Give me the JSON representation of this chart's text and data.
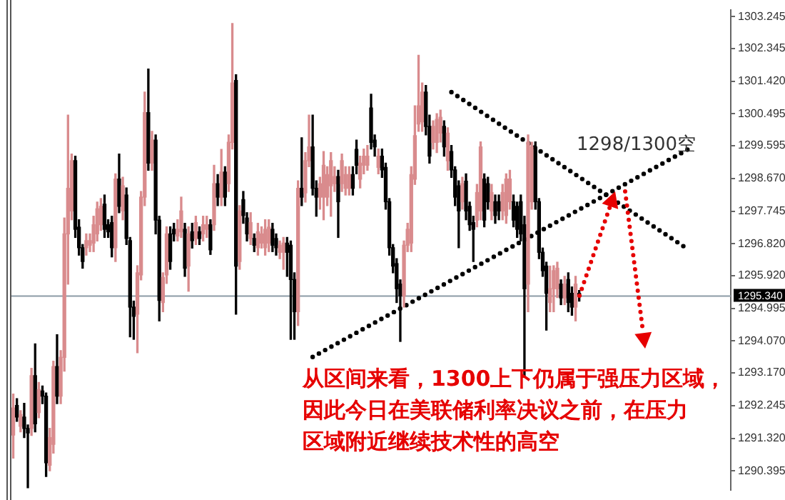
{
  "chart_data": {
    "type": "candlestick",
    "categories": [
      null,
      null,
      null,
      null,
      null,
      null,
      null,
      null,
      null,
      null,
      null,
      null,
      null,
      null,
      null,
      null,
      null,
      null,
      null,
      null,
      null,
      null,
      null,
      null,
      null,
      null,
      null,
      null,
      null,
      null,
      null,
      null,
      null,
      null,
      null,
      null,
      null,
      null,
      null,
      null,
      null,
      null,
      null,
      null,
      null,
      null,
      null,
      null,
      null,
      null,
      null,
      null,
      null,
      null,
      null,
      null,
      null,
      null,
      null,
      null,
      null,
      null,
      null,
      null,
      null,
      null,
      null,
      null,
      null,
      null,
      null,
      null,
      null,
      null,
      null,
      null,
      null,
      null,
      null,
      null,
      null,
      null,
      null,
      null,
      null,
      null,
      null,
      null,
      null,
      null,
      null,
      null,
      null,
      null,
      null,
      null,
      null,
      null,
      null,
      null,
      null,
      null,
      null,
      null,
      null,
      null,
      null,
      null,
      null,
      null,
      null,
      null,
      null,
      null,
      null,
      null,
      null,
      null,
      null,
      null,
      null,
      null,
      null,
      null,
      null,
      null,
      null,
      null,
      null,
      null,
      null,
      null,
      null,
      null,
      null,
      null,
      null,
      null,
      null,
      null,
      null,
      null,
      null,
      null,
      null,
      null,
      null,
      null,
      null,
      null,
      null,
      null,
      null,
      null,
      null,
      null,
      null,
      null,
      null,
      null,
      null,
      null,
      null,
      null,
      null,
      null,
      null,
      null,
      null,
      null,
      null,
      null,
      null,
      null,
      null,
      null,
      null,
      null,
      null,
      null,
      null,
      null,
      null,
      null,
      null,
      null,
      null,
      null,
      null,
      null,
      null,
      null,
      null,
      null,
      null,
      null,
      null
    ],
    "ohlc": [
      [
        1291.41,
        1292.57,
        1290.76,
        1292.18
      ],
      [
        1292.25,
        1292.44,
        1291.8,
        1291.92
      ],
      [
        1291.66,
        1292.1,
        1291.5,
        1291.99
      ],
      [
        1291.92,
        1292.31,
        1291.34,
        1291.6
      ],
      [
        1291.6,
        1291.7,
        1289.92,
        1291.47
      ],
      [
        1291.6,
        1293.3,
        1291.4,
        1293.09
      ],
      [
        1293.09,
        1293.99,
        1291.5,
        1291.73
      ],
      [
        1292.05,
        1292.9,
        1291.9,
        1292.7
      ],
      [
        1292.66,
        1292.8,
        1292.3,
        1292.51
      ],
      [
        1292.51,
        1292.6,
        1290.24,
        1290.63
      ],
      [
        1290.56,
        1291.6,
        1290.4,
        1291.34
      ],
      [
        1291.15,
        1293.5,
        1290.9,
        1293.35
      ],
      [
        1293.35,
        1294.25,
        1292.3,
        1292.51
      ],
      [
        1292.51,
        1293.8,
        1292.3,
        1293.61
      ],
      [
        1293.61,
        1297.55,
        1293.22,
        1297.1
      ],
      [
        1297.1,
        1300.46,
        1295.68,
        1298.39
      ],
      [
        1297.75,
        1299.36,
        1297.5,
        1299.17
      ],
      [
        1299.17,
        1299.3,
        1297.0,
        1297.23
      ],
      [
        1297.29,
        1297.5,
        1296.5,
        1296.71
      ],
      [
        1296.71,
        1296.8,
        1296.13,
        1296.32
      ],
      [
        1296.71,
        1297.1,
        1296.5,
        1296.91
      ],
      [
        1296.78,
        1297.1,
        1296.6,
        1296.91
      ],
      [
        1296.84,
        1297.6,
        1296.6,
        1297.36
      ],
      [
        1297.1,
        1298.0,
        1296.9,
        1297.81
      ],
      [
        1297.36,
        1298.1,
        1297.2,
        1297.88
      ],
      [
        1297.94,
        1298.2,
        1297.0,
        1297.23
      ],
      [
        1297.36,
        1297.5,
        1297.0,
        1297.16
      ],
      [
        1297.42,
        1297.6,
        1296.45,
        1296.71
      ],
      [
        1296.71,
        1298.8,
        1296.32,
        1298.65
      ],
      [
        1298.65,
        1299.36,
        1297.7,
        1297.88
      ],
      [
        1297.75,
        1298.7,
        1297.5,
        1298.46
      ],
      [
        1298.2,
        1298.4,
        1296.8,
        1296.97
      ],
      [
        1296.91,
        1297.0,
        1294.19,
        1295.03
      ],
      [
        1295.03,
        1295.2,
        1294.12,
        1294.77
      ],
      [
        1294.83,
        1296.2,
        1293.74,
        1296.0
      ],
      [
        1295.94,
        1298.3,
        1295.8,
        1298.14
      ],
      [
        1298.14,
        1301.11,
        1297.9,
        1300.53
      ],
      [
        1300.53,
        1301.76,
        1298.9,
        1299.1
      ],
      [
        1299.1,
        1300.0,
        1298.9,
        1299.75
      ],
      [
        1299.75,
        1299.9,
        1297.1,
        1297.49
      ],
      [
        1297.49,
        1297.6,
        1294.64,
        1295.22
      ],
      [
        1295.16,
        1296.0,
        1294.9,
        1295.87
      ],
      [
        1295.94,
        1297.3,
        1295.7,
        1297.1
      ],
      [
        1297.1,
        1297.3,
        1296.1,
        1296.32
      ],
      [
        1297.23,
        1297.4,
        1296.9,
        1297.1
      ],
      [
        1297.04,
        1297.5,
        1296.9,
        1297.23
      ],
      [
        1297.16,
        1298.14,
        1297.0,
        1297.75
      ],
      [
        1297.23,
        1297.4,
        1295.9,
        1296.13
      ],
      [
        1296.19,
        1297.3,
        1295.48,
        1297.1
      ],
      [
        1297.16,
        1297.4,
        1296.7,
        1296.91
      ],
      [
        1296.97,
        1297.6,
        1296.8,
        1297.42
      ],
      [
        1297.16,
        1297.3,
        1296.8,
        1296.97
      ],
      [
        1297.1,
        1297.6,
        1296.9,
        1297.36
      ],
      [
        1297.23,
        1297.6,
        1297.0,
        1297.36
      ],
      [
        1297.36,
        1297.5,
        1296.52,
        1296.65
      ],
      [
        1297.36,
        1299.04,
        1297.2,
        1298.52
      ],
      [
        1298.52,
        1298.78,
        1297.9,
        1298.14
      ],
      [
        1298.14,
        1299.49,
        1297.9,
        1298.85
      ],
      [
        1298.85,
        1299.0,
        1297.9,
        1298.14
      ],
      [
        1298.52,
        1299.9,
        1298.3,
        1299.69
      ],
      [
        1299.69,
        1303.05,
        1299.5,
        1301.37
      ],
      [
        1301.44,
        1301.6,
        1294.83,
        1296.19
      ],
      [
        1296.32,
        1297.9,
        1296.1,
        1297.75
      ],
      [
        1298.07,
        1298.3,
        1297.4,
        1297.62
      ],
      [
        1297.55,
        1297.7,
        1296.9,
        1297.1
      ],
      [
        1296.97,
        1297.7,
        1296.8,
        1297.42
      ],
      [
        1296.97,
        1297.1,
        1296.6,
        1296.78
      ],
      [
        1296.71,
        1297.4,
        1296.5,
        1297.16
      ],
      [
        1296.84,
        1297.3,
        1296.7,
        1297.1
      ],
      [
        1296.71,
        1297.5,
        1296.5,
        1297.23
      ],
      [
        1296.84,
        1297.5,
        1296.6,
        1297.29
      ],
      [
        1297.23,
        1297.4,
        1296.6,
        1296.78
      ],
      [
        1296.97,
        1297.1,
        1296.5,
        1296.71
      ],
      [
        1296.58,
        1296.9,
        1296.4,
        1296.78
      ],
      [
        1296.58,
        1297.0,
        1296.1,
        1296.84
      ],
      [
        1296.84,
        1297.0,
        1295.9,
        1296.58
      ],
      [
        1296.78,
        1296.9,
        1294.12,
        1295.81
      ],
      [
        1295.81,
        1296.0,
        1294.12,
        1294.9
      ],
      [
        1294.9,
        1298.6,
        1294.51,
        1298.39
      ],
      [
        1298.39,
        1299.82,
        1297.9,
        1298.14
      ],
      [
        1298.26,
        1299.4,
        1298.0,
        1299.17
      ],
      [
        1299.17,
        1300.46,
        1299.0,
        1299.56
      ],
      [
        1299.56,
        1300.46,
        1298.2,
        1298.39
      ],
      [
        1298.39,
        1298.6,
        1297.6,
        1298.14
      ],
      [
        1298.14,
        1298.7,
        1297.8,
        1298.52
      ],
      [
        1298.14,
        1299.43,
        1297.5,
        1299.04
      ],
      [
        1298.14,
        1299.0,
        1297.9,
        1298.78
      ],
      [
        1298.46,
        1299.4,
        1297.6,
        1299.17
      ],
      [
        1298.52,
        1299.0,
        1298.3,
        1298.72
      ],
      [
        1298.72,
        1298.9,
        1297.0,
        1298.01
      ],
      [
        1298.52,
        1299.36,
        1298.3,
        1299.17
      ],
      [
        1298.39,
        1299.0,
        1298.2,
        1298.78
      ],
      [
        1298.39,
        1299.0,
        1298.2,
        1298.78
      ],
      [
        1298.78,
        1299.0,
        1298.2,
        1298.39
      ],
      [
        1299.49,
        1299.75,
        1298.8,
        1299.04
      ],
      [
        1298.65,
        1299.3,
        1298.4,
        1299.1
      ],
      [
        1299.04,
        1299.5,
        1298.8,
        1299.3
      ],
      [
        1299.04,
        1299.6,
        1298.9,
        1299.3
      ],
      [
        1300.66,
        1301.05,
        1299.5,
        1299.69
      ],
      [
        1299.75,
        1299.9,
        1299.3,
        1299.56
      ],
      [
        1298.98,
        1299.5,
        1298.8,
        1299.3
      ],
      [
        1299.3,
        1299.5,
        1298.7,
        1298.91
      ],
      [
        1298.98,
        1299.1,
        1297.8,
        1298.01
      ],
      [
        1298.01,
        1298.1,
        1296.5,
        1296.71
      ],
      [
        1296.71,
        1296.8,
        1296.0,
        1296.19
      ],
      [
        1296.26,
        1296.4,
        1295.16,
        1295.55
      ],
      [
        1295.68,
        1295.8,
        1294.06,
        1295.35
      ],
      [
        1295.35,
        1296.9,
        1295.03,
        1296.78
      ],
      [
        1296.78,
        1297.4,
        1296.6,
        1297.23
      ],
      [
        1296.84,
        1299.0,
        1296.6,
        1298.78
      ],
      [
        1298.65,
        1300.72,
        1298.5,
        1299.88
      ],
      [
        1300.21,
        1302.15,
        1300.0,
        1300.72
      ],
      [
        1300.27,
        1301.37,
        1300.0,
        1301.11
      ],
      [
        1301.11,
        1301.3,
        1299.9,
        1300.14
      ],
      [
        1300.14,
        1300.46,
        1299.1,
        1299.3
      ],
      [
        1299.69,
        1300.3,
        1299.5,
        1300.14
      ],
      [
        1299.69,
        1300.5,
        1299.4,
        1300.34
      ],
      [
        1299.95,
        1300.6,
        1299.7,
        1300.4
      ],
      [
        1300.14,
        1300.3,
        1299.3,
        1299.56
      ],
      [
        1299.17,
        1300.1,
        1298.9,
        1299.95
      ],
      [
        1299.43,
        1299.6,
        1298.7,
        1298.91
      ],
      [
        1298.91,
        1299.0,
        1297.9,
        1298.14
      ],
      [
        1298.46,
        1298.6,
        1296.71,
        1297.75
      ],
      [
        1298.01,
        1298.7,
        1297.8,
        1298.52
      ],
      [
        1298.59,
        1298.8,
        1297.5,
        1297.75
      ],
      [
        1297.88,
        1298.0,
        1297.2,
        1297.36
      ],
      [
        1297.42,
        1297.6,
        1296.32,
        1297.23
      ],
      [
        1297.49,
        1298.5,
        1297.3,
        1298.27
      ],
      [
        1297.75,
        1299.7,
        1297.5,
        1299.56
      ],
      [
        1298.65,
        1298.8,
        1297.3,
        1297.49
      ],
      [
        1298.52,
        1298.7,
        1297.8,
        1298.01
      ],
      [
        1297.75,
        1298.5,
        1297.5,
        1298.27
      ],
      [
        1298.01,
        1298.2,
        1297.4,
        1297.62
      ],
      [
        1298.01,
        1298.2,
        1297.5,
        1297.75
      ],
      [
        1297.75,
        1298.5,
        1297.5,
        1298.27
      ],
      [
        1297.62,
        1298.8,
        1297.4,
        1298.65
      ],
      [
        1298.01,
        1298.9,
        1297.8,
        1298.65
      ],
      [
        1298.01,
        1298.2,
        1297.3,
        1297.49
      ],
      [
        1297.88,
        1298.0,
        1297.0,
        1297.23
      ],
      [
        1298.01,
        1298.2,
        1296.9,
        1297.1
      ],
      [
        1297.36,
        1297.6,
        1293.09,
        1295.55
      ],
      [
        1295.68,
        1299.9,
        1294.9,
        1299.69
      ],
      [
        1298.01,
        1299.69,
        1297.8,
        1299.56
      ],
      [
        1299.56,
        1299.7,
        1297.8,
        1298.01
      ],
      [
        1298.01,
        1298.1,
        1296.4,
        1296.58
      ],
      [
        1296.58,
        1296.7,
        1295.9,
        1296.06
      ],
      [
        1296.19,
        1296.3,
        1294.38,
        1295.42
      ],
      [
        1295.16,
        1296.19,
        1294.9,
        1295.55
      ],
      [
        1295.55,
        1296.2,
        1294.9,
        1296.06
      ],
      [
        1295.55,
        1296.3,
        1295.3,
        1296.13
      ],
      [
        1295.68,
        1295.8,
        1295.1,
        1295.29
      ],
      [
        1295.29,
        1295.9,
        1295.1,
        1295.68
      ],
      [
        1295.81,
        1296.0,
        1294.9,
        1295.16
      ],
      [
        1295.42,
        1295.6,
        1294.8,
        1295.03
      ],
      [
        1295.03,
        1295.9,
        1294.64,
        1295.68
      ],
      [
        1295.42,
        1295.5,
        1295.2,
        1295.34
      ],
      null,
      null,
      null,
      null,
      null,
      null,
      null,
      null,
      null,
      null,
      null,
      null,
      null,
      null,
      null,
      null,
      null,
      null,
      null,
      null,
      null,
      null,
      null,
      null,
      null,
      null,
      null,
      null,
      null,
      null,
      null,
      null,
      null,
      null,
      null,
      null,
      null,
      null,
      null,
      null,
      null
    ],
    "colors": [
      "#d98b8d",
      "#000000",
      "#d98b8d",
      "#000000",
      "#000000",
      "#d98b8d",
      "#000000",
      "#d98b8d",
      "#000000",
      "#000000",
      "#d98b8d",
      "#d98b8d",
      "#000000",
      "#d98b8d",
      "#d98b8d",
      "#d98b8d",
      "#d98b8d",
      "#000000",
      "#000000",
      "#000000",
      "#d98b8d",
      "#d98b8d",
      "#d98b8d",
      "#d98b8d",
      "#d98b8d",
      "#000000",
      "#000000",
      "#000000",
      "#d98b8d",
      "#000000",
      "#d98b8d",
      "#000000",
      "#000000",
      "#000000",
      "#d98b8d",
      "#d98b8d",
      "#d98b8d",
      "#000000",
      "#d98b8d",
      "#000000",
      "#000000",
      "#d98b8d",
      "#d98b8d",
      "#000000",
      "#000000",
      "#d98b8d",
      "#d98b8d",
      "#000000",
      "#d98b8d",
      "#000000",
      "#d98b8d",
      "#000000",
      "#d98b8d",
      "#d98b8d",
      "#000000",
      "#d98b8d",
      "#000000",
      "#d98b8d",
      "#000000",
      "#d98b8d",
      "#d98b8d",
      "#000000",
      "#d98b8d",
      "#000000",
      "#000000",
      "#d98b8d",
      "#000000",
      "#d98b8d",
      "#d98b8d",
      "#d98b8d",
      "#d98b8d",
      "#000000",
      "#000000",
      "#d98b8d",
      "#d98b8d",
      "#000000",
      "#000000",
      "#000000",
      "#d98b8d",
      "#000000",
      "#d98b8d",
      "#d98b8d",
      "#000000",
      "#000000",
      "#d98b8d",
      "#d98b8d",
      "#d98b8d",
      "#d98b8d",
      "#d98b8d",
      "#000000",
      "#d98b8d",
      "#d98b8d",
      "#d98b8d",
      "#000000",
      "#000000",
      "#d98b8d",
      "#d98b8d",
      "#d98b8d",
      "#000000",
      "#000000",
      "#d98b8d",
      "#000000",
      "#000000",
      "#000000",
      "#000000",
      "#000000",
      "#000000",
      "#d98b8d",
      "#d98b8d",
      "#d98b8d",
      "#d98b8d",
      "#d98b8d",
      "#d98b8d",
      "#000000",
      "#000000",
      "#d98b8d",
      "#d98b8d",
      "#d98b8d",
      "#000000",
      "#d98b8d",
      "#000000",
      "#000000",
      "#000000",
      "#d98b8d",
      "#000000",
      "#000000",
      "#000000",
      "#d98b8d",
      "#d98b8d",
      "#000000",
      "#000000",
      "#d98b8d",
      "#000000",
      "#000000",
      "#d98b8d",
      "#d98b8d",
      "#d98b8d",
      "#000000",
      "#000000",
      "#000000",
      "#000000",
      "#d98b8d",
      "#d98b8d",
      "#000000",
      "#000000",
      "#000000",
      "#000000",
      "#d98b8d",
      "#d98b8d",
      "#d98b8d",
      "#000000",
      "#d98b8d",
      "#000000",
      "#000000",
      "#d98b8d",
      "#000000",
      null,
      null,
      null,
      null,
      null,
      null,
      null,
      null,
      null,
      null,
      null,
      null,
      null,
      null,
      null,
      null,
      null,
      null,
      null,
      null,
      null,
      null,
      null,
      null,
      null,
      null,
      null,
      null,
      null,
      null,
      null,
      null,
      null,
      null,
      null,
      null,
      null,
      null,
      null,
      null,
      null
    ],
    "series": [
      {
        "type": "line",
        "color": "#000000",
        "line_style": "dotted",
        "marker": "none",
        "values": [
          null,
          null,
          null,
          null,
          null,
          null,
          null,
          null,
          null,
          null,
          null,
          null,
          null,
          null,
          null,
          null,
          null,
          null,
          null,
          null,
          null,
          null,
          null,
          null,
          null,
          null,
          null,
          null,
          null,
          null,
          null,
          null,
          null,
          null,
          null,
          null,
          null,
          null,
          null,
          null,
          null,
          null,
          null,
          null,
          null,
          null,
          null,
          null,
          null,
          null,
          null,
          null,
          null,
          null,
          null,
          null,
          null,
          null,
          null,
          null,
          null,
          null,
          null,
          null,
          null,
          null,
          null,
          null,
          null,
          null,
          null,
          null,
          null,
          null,
          null,
          null,
          null,
          null,
          null,
          null,
          null,
          null,
          1293.62,
          null,
          null,
          null,
          null,
          null,
          null,
          null,
          null,
          null,
          null,
          null,
          null,
          null,
          null,
          null,
          null,
          null,
          null,
          null,
          null,
          null,
          null,
          null,
          null,
          null,
          null,
          null,
          null,
          null,
          null,
          null,
          null,
          null,
          null,
          null,
          null,
          null,
          null,
          null,
          null,
          null,
          null,
          null,
          null,
          null,
          null,
          null,
          null,
          null,
          null,
          null,
          null,
          null,
          null,
          null,
          null,
          null,
          null,
          null,
          null,
          null,
          null,
          null,
          null,
          null,
          null,
          null,
          null,
          null,
          null,
          null,
          null,
          null,
          null,
          null,
          null,
          null,
          null,
          null,
          null,
          null,
          null,
          null,
          null,
          null,
          null,
          null,
          null,
          null,
          null,
          null,
          null,
          null,
          null,
          null,
          null,
          null,
          null,
          null,
          null,
          null,
          null,
          null,
          1299.56,
          null,
          null,
          null,
          null,
          null,
          null,
          null,
          null,
          null,
          null
        ]
      },
      {
        "type": "line",
        "color": "#000000",
        "line_style": "dotted",
        "marker": "none",
        "values": [
          null,
          null,
          null,
          null,
          null,
          null,
          null,
          null,
          null,
          null,
          null,
          null,
          null,
          null,
          null,
          null,
          null,
          null,
          null,
          null,
          null,
          null,
          null,
          null,
          null,
          null,
          null,
          null,
          null,
          null,
          null,
          null,
          null,
          null,
          null,
          null,
          null,
          null,
          null,
          null,
          null,
          null,
          null,
          null,
          null,
          null,
          null,
          null,
          null,
          null,
          null,
          null,
          null,
          null,
          null,
          null,
          null,
          null,
          null,
          null,
          null,
          null,
          null,
          null,
          null,
          null,
          null,
          null,
          null,
          null,
          null,
          null,
          null,
          null,
          null,
          null,
          null,
          null,
          null,
          null,
          null,
          null,
          null,
          null,
          null,
          null,
          null,
          null,
          null,
          null,
          null,
          null,
          null,
          null,
          null,
          null,
          null,
          null,
          null,
          null,
          null,
          null,
          null,
          null,
          null,
          null,
          null,
          null,
          null,
          null,
          null,
          null,
          null,
          null,
          null,
          null,
          null,
          null,
          null,
          null,
          1301.11,
          null,
          null,
          null,
          null,
          null,
          null,
          null,
          null,
          null,
          null,
          null,
          null,
          null,
          null,
          null,
          null,
          null,
          null,
          null,
          null,
          null,
          null,
          null,
          null,
          null,
          null,
          null,
          null,
          null,
          null,
          null,
          null,
          null,
          null,
          null,
          null,
          null,
          null,
          null,
          null,
          null,
          null,
          null,
          null,
          null,
          null,
          null,
          null,
          null,
          null,
          null,
          null,
          null,
          null,
          null,
          null,
          null,
          null,
          null,
          null,
          null,
          null,
          null,
          1296.72,
          null,
          null,
          null,
          null,
          null,
          null,
          null,
          null,
          null,
          null,
          null,
          null
        ]
      }
    ],
    "ylim": [
      1289.85,
      1303.44
    ],
    "yticks": [
      {
        "value": 1290.395,
        "label": "1290.395"
      },
      {
        "value": 1291.32,
        "label": "1291.320"
      },
      {
        "value": 1292.245,
        "label": "1292.245"
      },
      {
        "value": 1293.17,
        "label": "1293.170"
      },
      {
        "value": 1294.07,
        "label": "1294.070"
      },
      {
        "value": 1294.995,
        "label": "1294.995"
      },
      {
        "value": 1295.92,
        "label": "1295.920"
      },
      {
        "value": 1296.82,
        "label": "1296.820"
      },
      {
        "value": 1297.745,
        "label": "1297.745"
      },
      {
        "value": 1298.67,
        "label": "1298.670"
      },
      {
        "value": 1299.595,
        "label": "1299.595"
      },
      {
        "value": 1300.495,
        "label": "1300.495"
      },
      {
        "value": 1301.42,
        "label": "1301.420"
      },
      {
        "value": 1302.345,
        "label": "1302.345"
      },
      {
        "value": 1303.245,
        "label": "1303.245"
      }
    ],
    "tick_labels": "y",
    "ref_lines": [
      {
        "axis": "y",
        "value": 1295.34,
        "label": "1295.340",
        "color": "#8c9ba6"
      }
    ],
    "annotations": [
      "1298/1300空",
      "从区间来看，1300上下仍属于强压力区域，",
      "因此今日在美联储利率决议之前，在压力",
      "区域附近继续技术性的高空"
    ]
  }
}
